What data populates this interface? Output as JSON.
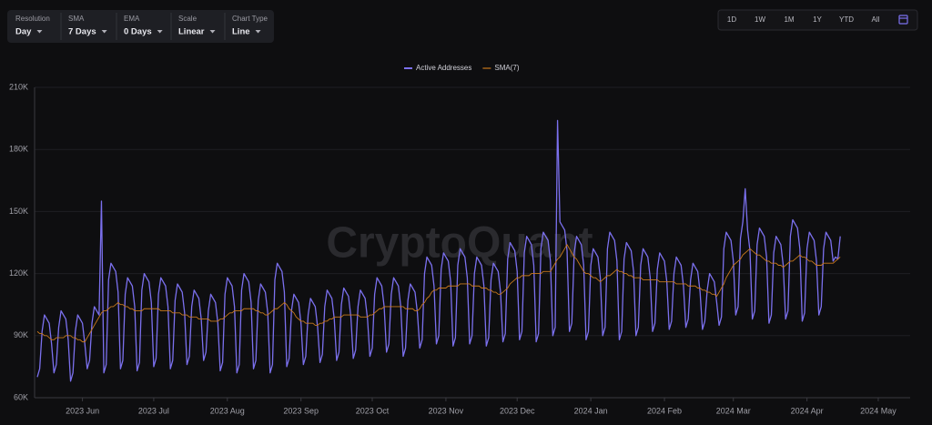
{
  "toolbar": [
    {
      "label": "Resolution",
      "value": "Day"
    },
    {
      "label": "SMA",
      "value": "7 Days"
    },
    {
      "label": "EMA",
      "value": "0 Days"
    },
    {
      "label": "Scale",
      "value": "Linear"
    },
    {
      "label": "Chart Type",
      "value": "Line"
    }
  ],
  "range_buttons": [
    "1D",
    "1W",
    "1M",
    "1Y",
    "YTD",
    "All"
  ],
  "watermark": "CryptoQuant",
  "chart_data": {
    "type": "line",
    "grid": true,
    "legend": "top",
    "categories": [
      null,
      null,
      null,
      null,
      null,
      null,
      null,
      null,
      null,
      null,
      null,
      null,
      null,
      null,
      null,
      null,
      null,
      null,
      null,
      "2023 Jun",
      null,
      null,
      null,
      null,
      null,
      null,
      null,
      null,
      null,
      null,
      null,
      null,
      null,
      null,
      null,
      null,
      null,
      null,
      null,
      null,
      null,
      null,
      null,
      null,
      null,
      null,
      null,
      null,
      null,
      "2023 Jul",
      null,
      null,
      null,
      null,
      null,
      null,
      null,
      null,
      null,
      null,
      null,
      null,
      null,
      null,
      null,
      null,
      null,
      null,
      null,
      null,
      null,
      null,
      null,
      null,
      null,
      null,
      null,
      null,
      null,
      null,
      "2023 Aug",
      null,
      null,
      null,
      null,
      null,
      null,
      null,
      null,
      null,
      null,
      null,
      null,
      null,
      null,
      null,
      null,
      null,
      null,
      null,
      null,
      null,
      null,
      null,
      null,
      null,
      null,
      null,
      null,
      null,
      null,
      "2023 Sep",
      null,
      null,
      null,
      null,
      null,
      null,
      null,
      null,
      null,
      null,
      null,
      null,
      null,
      null,
      null,
      null,
      null,
      null,
      null,
      null,
      null,
      null,
      null,
      null,
      null,
      null,
      null,
      null,
      null,
      "2023 Oct",
      null,
      null,
      null,
      null,
      null,
      null,
      null,
      null,
      null,
      null,
      null,
      null,
      null,
      null,
      null,
      null,
      null,
      null,
      null,
      null,
      null,
      null,
      null,
      null,
      null,
      null,
      null,
      null,
      null,
      null,
      "2023 Nov",
      null,
      null,
      null,
      null,
      null,
      null,
      null,
      null,
      null,
      null,
      null,
      null,
      null,
      null,
      null,
      null,
      null,
      null,
      null,
      null,
      null,
      null,
      null,
      null,
      null,
      null,
      null,
      null,
      null,
      "2023 Dec",
      null,
      null,
      null,
      null,
      null,
      null,
      null,
      null,
      null,
      null,
      null,
      null,
      null,
      null,
      null,
      null,
      null,
      null,
      null,
      null,
      null,
      null,
      null,
      null,
      null,
      null,
      null,
      null,
      null,
      null,
      "2024 Jan",
      null,
      null,
      null,
      null,
      null,
      null,
      null,
      null,
      null,
      null,
      null,
      null,
      null,
      null,
      null,
      null,
      null,
      null,
      null,
      null,
      null,
      null,
      null,
      null,
      null,
      null,
      null,
      null,
      null,
      null,
      "2024 Feb",
      null,
      null,
      null,
      null,
      null,
      null,
      null,
      null,
      null,
      null,
      null,
      null,
      null,
      null,
      null,
      null,
      null,
      null,
      null,
      null,
      null,
      null,
      null,
      null,
      null,
      null,
      null,
      null,
      "2024 Mar",
      null,
      null,
      null,
      null,
      null,
      null,
      null,
      null,
      null,
      null,
      null,
      null,
      null,
      null,
      null,
      null,
      null,
      null,
      null,
      null,
      null,
      null,
      null,
      null,
      null,
      null,
      null,
      null,
      null,
      null,
      "2024 Apr",
      null,
      null,
      null,
      null,
      null,
      null,
      null,
      null,
      null,
      null,
      null,
      null,
      null,
      null,
      null,
      null,
      null,
      null,
      null,
      null,
      null,
      null,
      null,
      null,
      null,
      null,
      null,
      null,
      null,
      "2024 May"
    ],
    "series": [
      {
        "name": "Active Addresses",
        "color": "#7b70ee",
        "values": [
          70000,
          74000,
          92000,
          100000,
          98000,
          96000,
          86000,
          72000,
          76000,
          94000,
          102000,
          100000,
          98000,
          88000,
          68000,
          72000,
          92000,
          100000,
          98000,
          96000,
          86000,
          74000,
          78000,
          96000,
          104000,
          102000,
          100000,
          155000,
          72000,
          76000,
          117000,
          125000,
          123000,
          121000,
          111000,
          74000,
          78000,
          110000,
          118000,
          116000,
          114000,
          104000,
          73000,
          77000,
          112000,
          120000,
          118000,
          116000,
          106000,
          75000,
          79000,
          110000,
          118000,
          116000,
          114000,
          104000,
          74000,
          78000,
          107000,
          115000,
          113000,
          111000,
          101000,
          76000,
          80000,
          104000,
          112000,
          110000,
          108000,
          98000,
          78000,
          82000,
          102000,
          110000,
          108000,
          106000,
          96000,
          73000,
          77000,
          110000,
          118000,
          116000,
          114000,
          104000,
          72000,
          76000,
          112000,
          120000,
          118000,
          116000,
          106000,
          74000,
          78000,
          107000,
          115000,
          113000,
          111000,
          101000,
          72000,
          76000,
          117000,
          125000,
          123000,
          121000,
          111000,
          75000,
          79000,
          102000,
          110000,
          108000,
          106000,
          96000,
          76000,
          80000,
          100000,
          108000,
          106000,
          104000,
          94000,
          77000,
          81000,
          104000,
          112000,
          110000,
          108000,
          98000,
          78000,
          82000,
          105000,
          113000,
          111000,
          109000,
          99000,
          79000,
          83000,
          104000,
          112000,
          110000,
          108000,
          98000,
          80000,
          84000,
          110000,
          118000,
          116000,
          114000,
          104000,
          82000,
          86000,
          110000,
          118000,
          116000,
          114000,
          104000,
          80000,
          84000,
          107000,
          115000,
          113000,
          111000,
          101000,
          84000,
          88000,
          120000,
          128000,
          126000,
          124000,
          114000,
          86000,
          90000,
          122000,
          130000,
          128000,
          126000,
          116000,
          85000,
          89000,
          124000,
          132000,
          130000,
          128000,
          118000,
          86000,
          90000,
          120000,
          128000,
          126000,
          124000,
          114000,
          85000,
          89000,
          117000,
          125000,
          123000,
          121000,
          111000,
          87000,
          91000,
          127000,
          135000,
          133000,
          131000,
          121000,
          88000,
          92000,
          130000,
          138000,
          136000,
          134000,
          124000,
          87000,
          91000,
          132000,
          140000,
          138000,
          136000,
          126000,
          90000,
          94000,
          194000,
          145000,
          143000,
          141000,
          131000,
          92000,
          96000,
          130000,
          138000,
          136000,
          134000,
          124000,
          88000,
          92000,
          124000,
          132000,
          130000,
          128000,
          118000,
          90000,
          94000,
          132000,
          140000,
          138000,
          136000,
          126000,
          88000,
          92000,
          127000,
          135000,
          133000,
          131000,
          121000,
          90000,
          94000,
          124000,
          132000,
          130000,
          128000,
          118000,
          92000,
          96000,
          122000,
          130000,
          128000,
          126000,
          116000,
          93000,
          97000,
          120000,
          128000,
          126000,
          124000,
          114000,
          94000,
          98000,
          117000,
          125000,
          123000,
          121000,
          111000,
          93000,
          97000,
          112000,
          120000,
          118000,
          116000,
          106000,
          95000,
          99000,
          132000,
          140000,
          138000,
          136000,
          126000,
          100000,
          104000,
          137000,
          145000,
          161000,
          141000,
          131000,
          98000,
          102000,
          134000,
          142000,
          140000,
          138000,
          128000,
          96000,
          100000,
          130000,
          138000,
          136000,
          134000,
          124000,
          98000,
          102000,
          138000,
          146000,
          144000,
          142000,
          132000,
          97000,
          101000,
          132000,
          140000,
          138000,
          136000,
          126000,
          100000,
          104000,
          132000,
          140000,
          138000,
          136000,
          126000,
          128000,
          127000,
          138000,
          null,
          null,
          null,
          null,
          null,
          null,
          null,
          null,
          null,
          null,
          null,
          null,
          null,
          null,
          null,
          null
        ]
      },
      {
        "name": "SMA(7)",
        "color": "#c8781c",
        "values": [
          92000,
          91000,
          91000,
          90000,
          90000,
          89000,
          88000,
          88000,
          89000,
          89000,
          89000,
          89000,
          90000,
          90000,
          90000,
          89000,
          89000,
          88000,
          88000,
          87000,
          87000,
          89000,
          91000,
          93000,
          95000,
          97000,
          99000,
          101000,
          102000,
          102000,
          103000,
          104000,
          104000,
          105000,
          106000,
          105000,
          105000,
          104000,
          104000,
          103000,
          103000,
          102000,
          102000,
          102000,
          102000,
          103000,
          103000,
          103000,
          103000,
          103000,
          103000,
          103000,
          102000,
          102000,
          102000,
          102000,
          102000,
          101000,
          101000,
          101000,
          101000,
          100000,
          100000,
          100000,
          99000,
          99000,
          99000,
          99000,
          98000,
          98000,
          98000,
          98000,
          98000,
          97000,
          97000,
          97000,
          97000,
          98000,
          98000,
          99000,
          100000,
          101000,
          101000,
          102000,
          102000,
          102000,
          102000,
          103000,
          103000,
          103000,
          103000,
          103000,
          102000,
          102000,
          101000,
          101000,
          100000,
          100000,
          101000,
          102000,
          103000,
          103000,
          104000,
          105000,
          106000,
          105000,
          103000,
          102000,
          101000,
          99000,
          98000,
          97000,
          97000,
          96000,
          96000,
          96000,
          96000,
          95000,
          95000,
          96000,
          96000,
          97000,
          97000,
          98000,
          98000,
          99000,
          99000,
          99000,
          99000,
          100000,
          100000,
          100000,
          100000,
          100000,
          100000,
          100000,
          99000,
          99000,
          99000,
          99000,
          100000,
          100000,
          101000,
          102000,
          103000,
          103000,
          104000,
          104000,
          104000,
          104000,
          104000,
          104000,
          104000,
          104000,
          104000,
          103000,
          103000,
          103000,
          103000,
          102000,
          102000,
          103000,
          105000,
          106000,
          108000,
          109000,
          111000,
          112000,
          112000,
          113000,
          113000,
          113000,
          113000,
          114000,
          114000,
          114000,
          114000,
          114000,
          115000,
          115000,
          115000,
          115000,
          115000,
          114000,
          114000,
          114000,
          114000,
          113000,
          113000,
          113000,
          112000,
          112000,
          111000,
          111000,
          110000,
          110000,
          111000,
          112000,
          113000,
          115000,
          116000,
          117000,
          118000,
          118000,
          119000,
          119000,
          119000,
          119000,
          120000,
          120000,
          120000,
          120000,
          120000,
          121000,
          121000,
          121000,
          121000,
          123000,
          125000,
          127000,
          128000,
          130000,
          132000,
          134000,
          132000,
          130000,
          128000,
          127000,
          125000,
          123000,
          121000,
          120000,
          120000,
          119000,
          118000,
          118000,
          117000,
          116000,
          117000,
          118000,
          119000,
          119000,
          120000,
          121000,
          122000,
          121000,
          121000,
          120000,
          120000,
          119000,
          119000,
          118000,
          118000,
          118000,
          118000,
          117000,
          117000,
          117000,
          117000,
          117000,
          117000,
          117000,
          116000,
          116000,
          116000,
          116000,
          116000,
          116000,
          116000,
          115000,
          115000,
          115000,
          115000,
          115000,
          114000,
          114000,
          114000,
          114000,
          113000,
          113000,
          112000,
          112000,
          111000,
          111000,
          110000,
          110000,
          109000,
          111000,
          113000,
          115000,
          118000,
          120000,
          122000,
          124000,
          125000,
          126000,
          127000,
          129000,
          130000,
          131000,
          132000,
          131000,
          130000,
          129000,
          129000,
          128000,
          127000,
          126000,
          126000,
          125000,
          125000,
          125000,
          124000,
          124000,
          123000,
          124000,
          125000,
          126000,
          126000,
          127000,
          128000,
          129000,
          128000,
          128000,
          127000,
          126000,
          126000,
          125000,
          124000,
          124000,
          124000,
          125000,
          125000,
          125000,
          125000,
          125000,
          126000,
          127000,
          128000,
          null,
          null,
          null,
          null,
          null,
          null,
          null,
          null,
          null,
          null,
          null,
          null,
          null,
          null,
          null,
          null
        ]
      }
    ],
    "ylim": [
      60000,
      210000
    ],
    "yticks": [
      {
        "value": 60000,
        "label": "60K"
      },
      {
        "value": 90000,
        "label": "90K"
      },
      {
        "value": 120000,
        "label": "120K"
      },
      {
        "value": 150000,
        "label": "150K"
      },
      {
        "value": 180000,
        "label": "180K"
      },
      {
        "value": 210000,
        "label": "210K"
      }
    ]
  }
}
